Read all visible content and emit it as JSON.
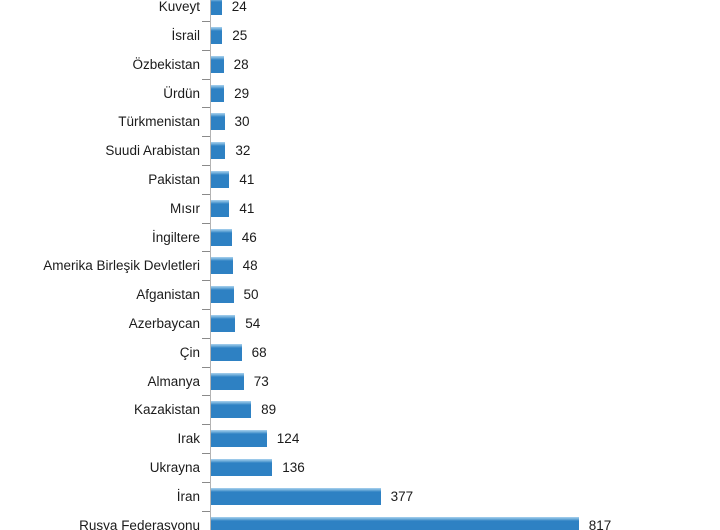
{
  "chart_data": {
    "type": "bar",
    "orientation": "horizontal",
    "title": "",
    "xlabel": "",
    "ylabel": "",
    "grid": false,
    "legend": false,
    "value_label_position": "outside-end",
    "categories": [
      "Kuveyt",
      "İsrail",
      "Özbekistan",
      "Ürdün",
      "Türkmenistan",
      "Suudi Arabistan",
      "Pakistan",
      "Mısır",
      "İngiltere",
      "Amerika Birleşik Devletleri",
      "Afganistan",
      "Azerbaycan",
      "Çin",
      "Almanya",
      "Kazakistan",
      "Irak",
      "Ukrayna",
      "İran",
      "Rusya Federasyonu"
    ],
    "values": [
      24,
      25,
      28,
      29,
      30,
      32,
      41,
      41,
      46,
      48,
      50,
      54,
      68,
      73,
      89,
      124,
      136,
      377,
      817
    ],
    "value_labels": [
      "24",
      "25",
      "28",
      "29",
      "30",
      "32",
      "41",
      "41",
      "46",
      "48",
      "50",
      "54",
      "68",
      "73",
      "89",
      "124",
      "136",
      "377",
      "817"
    ],
    "colors": {
      "bar": "#2e81c3",
      "bar_highlight": "#a8d1ee",
      "axis": "#b3b3b3",
      "tick": "#8a8a8a",
      "text": "#1b1b1b",
      "background": "#ffffff"
    }
  }
}
